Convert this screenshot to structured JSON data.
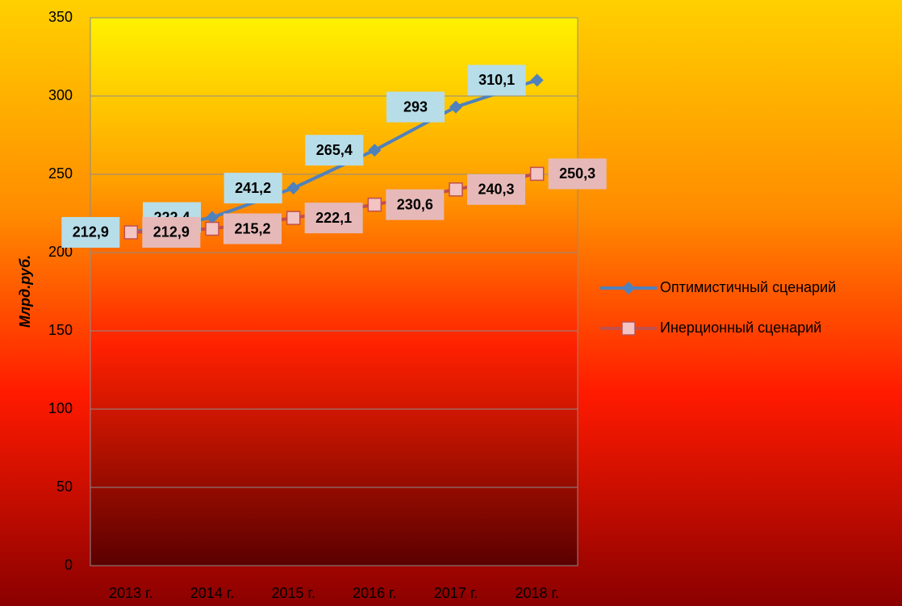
{
  "chart_data": {
    "type": "line",
    "categories": [
      "2013 г.",
      "2014 г.",
      "2015 г.",
      "2016 г.",
      "2017 г.",
      "2018 г."
    ],
    "y_axis_label": "Млрд.руб.",
    "series": [
      {
        "name": "Оптимистичный сценарий",
        "color": "#4f81bd",
        "marker": "diamond",
        "label_color": "#b7dde8",
        "label_side": "left",
        "values": [
          212.9,
          222.4,
          241.2,
          265.4,
          293,
          310.1
        ],
        "value_labels": [
          "212,9",
          "222,4",
          "241,2",
          "265,4",
          "293",
          "310,1"
        ]
      },
      {
        "name": "Инерционный сценарий",
        "color": "#c0504d",
        "marker": "square",
        "marker_fill": "#f2c4c4",
        "label_color": "#e6b9b8",
        "label_side": "right",
        "values": [
          212.9,
          215.2,
          222.1,
          230.6,
          240.3,
          250.3
        ],
        "value_labels": [
          "212,9",
          "215,2",
          "222,1",
          "230,6",
          "240,3",
          "250,3"
        ]
      }
    ],
    "ylim": [
      0,
      350
    ],
    "yticks": [
      0,
      50,
      100,
      150,
      200,
      250,
      300,
      350
    ],
    "grid": true,
    "legend": "right"
  }
}
